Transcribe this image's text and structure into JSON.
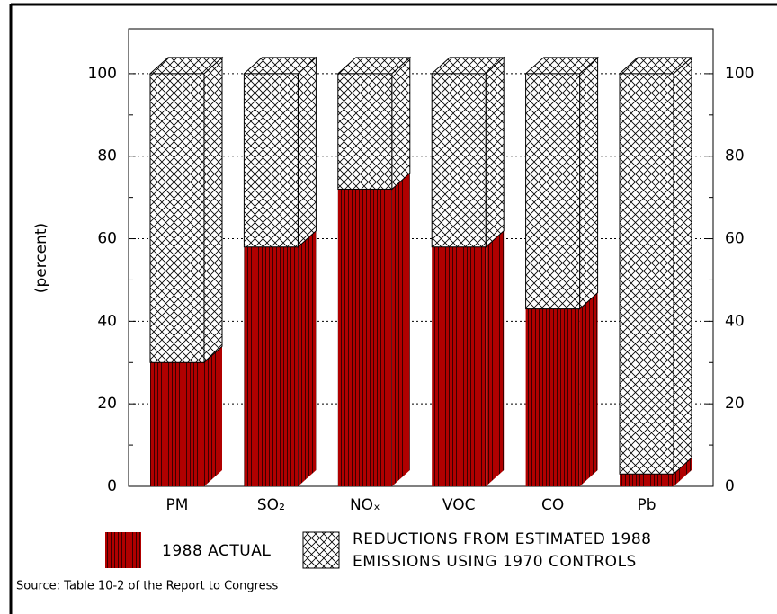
{
  "chart_data": {
    "type": "stacked_bar_3d",
    "y_label": "(percent)",
    "categories": [
      "PM",
      "SO₂",
      "NOₓ",
      "VOC",
      "CO",
      "Pb"
    ],
    "series": [
      {
        "name": "1988 ACTUAL",
        "color": "#b00000",
        "values": [
          30,
          58,
          72,
          58,
          43,
          3
        ]
      },
      {
        "name": "REDUCTIONS FROM ESTIMATED 1988 EMISSIONS USING 1970 CONTROLS",
        "color": "#ffffff",
        "values": [
          70,
          42,
          28,
          42,
          57,
          97
        ]
      }
    ],
    "ylim": [
      0,
      110
    ],
    "yticks": [
      0,
      20,
      40,
      60,
      80,
      100
    ],
    "y2lim": [
      0,
      110
    ],
    "y2ticks": [
      0,
      20,
      40,
      60,
      80,
      100
    ],
    "grid": true,
    "source": "Source: Table 10-2 of the Report to Congress"
  }
}
